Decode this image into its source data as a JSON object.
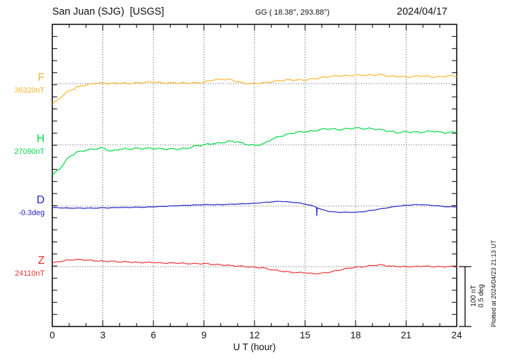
{
  "header": {
    "station_title": "San Juan (SJG)  [USGS]",
    "coordinates": "GG ( 18.38°, 293.88°)",
    "date": "2024/04/17"
  },
  "channels": [
    {
      "label": "F",
      "value": "36320nT",
      "color": "#FFB42E",
      "units": "nT"
    },
    {
      "label": "H",
      "value": "27090nT",
      "color": "#00D846",
      "units": "nT"
    },
    {
      "label": "D",
      "value": "-0.3deg",
      "color": "#2222CC",
      "units": "deg"
    },
    {
      "label": "Z",
      "value": "24110nT",
      "color": "#EE3333",
      "units": "nT"
    }
  ],
  "axis": {
    "x_tick_labels": [
      "0",
      "3",
      "6",
      "9",
      "12",
      "15",
      "18",
      "21",
      "24"
    ],
    "x_label": "U T (hour)"
  },
  "scale_bar": {
    "labels": [
      "100 nT",
      "0.5 deg"
    ]
  },
  "footer_note": "Plotted at 2024/04/23 21:13 UT",
  "chart_data": {
    "type": "line",
    "title": "San Juan (SJG) [USGS] magnetogram 2024/04/17",
    "xlabel": "U T (hour)",
    "x_range": [
      0,
      24
    ],
    "x_tick_interval_hours": 3,
    "grid": "dotted",
    "sample_interval_hours": 0.5,
    "x_hours": [
      0,
      0.5,
      1,
      1.5,
      2,
      2.5,
      3,
      3.5,
      4,
      4.5,
      5,
      5.5,
      6,
      6.5,
      7,
      7.5,
      8,
      8.5,
      9,
      9.5,
      10,
      10.5,
      11,
      11.5,
      12,
      12.5,
      13,
      13.5,
      14,
      14.5,
      15,
      15.5,
      16,
      16.5,
      17,
      17.5,
      18,
      18.5,
      19,
      19.5,
      20,
      20.5,
      21,
      21.5,
      22,
      22.5,
      23,
      23.5,
      24
    ],
    "scale": {
      "nT_per_bar": 100,
      "deg_per_bar": 0.5
    },
    "series": [
      {
        "name": "F",
        "units": "nT",
        "baseline": 36320,
        "offsets": [
          -35,
          -23,
          -12,
          -6,
          -2,
          0,
          1,
          0,
          1,
          0,
          1,
          2,
          3,
          1,
          1,
          1,
          1,
          1,
          2,
          6,
          7,
          7,
          3,
          0,
          0,
          1,
          3,
          5,
          6,
          6,
          6,
          8,
          10,
          12,
          13,
          13,
          14,
          14,
          14,
          15,
          12,
          12,
          11,
          12,
          13,
          11,
          11,
          13,
          12
        ]
      },
      {
        "name": "H",
        "units": "nT",
        "baseline": 27090,
        "offsets": [
          -51,
          -38,
          -20,
          -12,
          -9,
          -7,
          -5,
          -11,
          -7,
          -7,
          -6,
          -6,
          -6,
          -7,
          -7,
          -7,
          -6,
          -2,
          0,
          2,
          3,
          6,
          5,
          1,
          -1,
          1,
          9,
          14,
          18,
          21,
          22,
          23,
          26,
          27,
          25,
          27,
          28,
          27,
          27,
          25,
          23,
          20,
          22,
          21,
          21,
          23,
          21,
          20,
          22
        ]
      },
      {
        "name": "D",
        "units": "deg",
        "baseline": -0.3,
        "offsets": [
          -0.012,
          -0.015,
          -0.017,
          -0.017,
          -0.017,
          -0.017,
          -0.015,
          -0.015,
          -0.012,
          -0.012,
          -0.01,
          -0.01,
          -0.006,
          -0.003,
          0,
          0.003,
          0.006,
          0.009,
          0.012,
          0.012,
          0.012,
          0.015,
          0.017,
          0.02,
          0.023,
          0.029,
          0.035,
          0.04,
          0.035,
          0.029,
          0.017,
          0,
          -0.03,
          -0.046,
          -0.052,
          -0.052,
          -0.052,
          -0.046,
          -0.035,
          -0.023,
          -0.012,
          0,
          0.006,
          0.012,
          0.012,
          0.006,
          0,
          -0.006,
          -0.006
        ],
        "spikes": [
          {
            "hour": 15.7,
            "offset": -0.08
          }
        ]
      },
      {
        "name": "Z",
        "units": "nT",
        "baseline": 24110,
        "offsets": [
          6,
          9,
          11,
          12,
          11,
          10,
          9,
          9,
          8,
          8,
          7,
          7,
          7,
          6,
          6,
          6,
          5,
          5,
          5,
          4,
          3,
          2,
          1,
          0,
          -1,
          -2,
          -5,
          -7,
          -9,
          -10,
          -10,
          -12,
          -11,
          -9,
          -6,
          -3,
          -1,
          0,
          2,
          3,
          1,
          0,
          0,
          0,
          1,
          0,
          0,
          0,
          0
        ]
      }
    ]
  }
}
